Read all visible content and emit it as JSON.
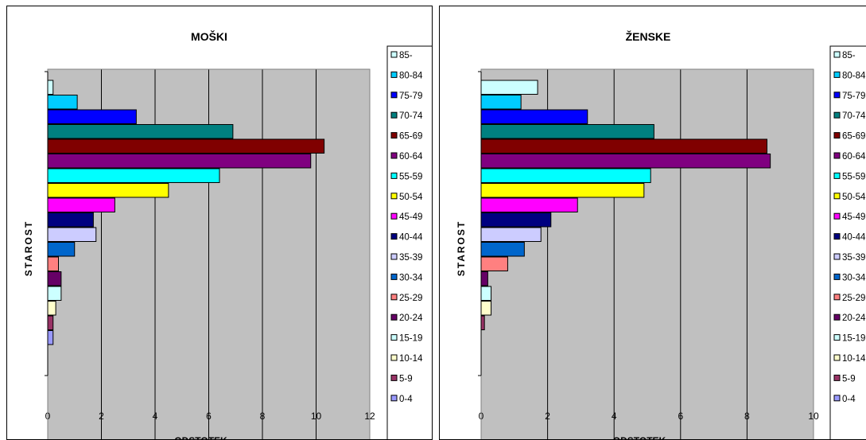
{
  "chart_data": [
    {
      "type": "bar",
      "orientation": "horizontal",
      "title": "MOŠKI",
      "xlabel": "ODSTOTEK",
      "ylabel": "STAROST",
      "xlim": [
        0,
        12
      ],
      "xticks": [
        "0",
        "2",
        "4",
        "6",
        "8",
        "10",
        "12"
      ],
      "grid": true,
      "plot_background": "#C0C0C0",
      "legend_position": "right",
      "categories": [
        "85-",
        "80-84",
        "75-79",
        "70-74",
        "65-69",
        "60-64",
        "55-59",
        "50-54",
        "45-49",
        "40-44",
        "35-39",
        "30-34",
        "25-29",
        "20-24",
        "15-19",
        "10-14",
        "5-9",
        "0-4"
      ],
      "values": [
        0.2,
        1.1,
        3.3,
        6.9,
        10.3,
        9.8,
        6.4,
        4.5,
        2.5,
        1.7,
        1.8,
        1.0,
        0.4,
        0.5,
        0.5,
        0.3,
        0.2,
        0.2
      ],
      "colors": [
        "#CCFFFF",
        "#00CCFF",
        "#0000FF",
        "#008080",
        "#800000",
        "#800080",
        "#00FFFF",
        "#FFFF00",
        "#FF00FF",
        "#000080",
        "#CCCCFF",
        "#0066CC",
        "#FF8080",
        "#660066",
        "#CCFFFF",
        "#FFFFCC",
        "#993366",
        "#9999FF"
      ]
    },
    {
      "type": "bar",
      "orientation": "horizontal",
      "title": "ŽENSKE",
      "xlabel": "ODSTOTEK",
      "ylabel": "STAROST",
      "xlim": [
        0,
        10
      ],
      "xticks": [
        "0",
        "2",
        "4",
        "6",
        "8",
        "10"
      ],
      "grid": true,
      "plot_background": "#C0C0C0",
      "legend_position": "right",
      "categories": [
        "85-",
        "80-84",
        "75-79",
        "70-74",
        "65-69",
        "60-64",
        "55-59",
        "50-54",
        "45-49",
        "40-44",
        "35-39",
        "30-34",
        "25-29",
        "20-24",
        "15-19",
        "10-14",
        "5-9",
        "0-4"
      ],
      "values": [
        1.7,
        1.2,
        3.2,
        5.2,
        8.6,
        8.7,
        5.1,
        4.9,
        2.9,
        2.1,
        1.8,
        1.3,
        0.8,
        0.2,
        0.3,
        0.3,
        0.1,
        0.0
      ],
      "colors": [
        "#CCFFFF",
        "#00CCFF",
        "#0000FF",
        "#008080",
        "#800000",
        "#800080",
        "#00FFFF",
        "#FFFF00",
        "#FF00FF",
        "#000080",
        "#CCCCFF",
        "#0066CC",
        "#FF8080",
        "#660066",
        "#CCFFFF",
        "#FFFFCC",
        "#993366",
        "#9999FF"
      ]
    }
  ]
}
